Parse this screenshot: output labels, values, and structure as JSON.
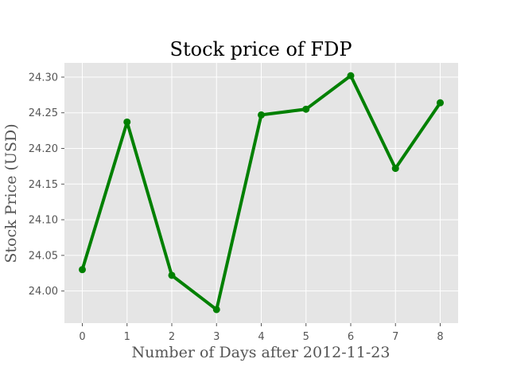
{
  "chart_data": {
    "type": "line",
    "title": "Stock price of FDP",
    "xlabel": "Number of Days after 2012-11-23",
    "ylabel": "Stock Price (USD)",
    "x": [
      0,
      1,
      2,
      3,
      4,
      5,
      6,
      7,
      8
    ],
    "y": [
      24.03,
      24.237,
      24.022,
      23.974,
      24.247,
      24.255,
      24.302,
      24.172,
      24.264
    ],
    "xlim": [
      -0.4,
      8.4
    ],
    "ylim": [
      23.955,
      24.32
    ],
    "xticks": [
      "0",
      "1",
      "2",
      "3",
      "4",
      "5",
      "6",
      "7",
      "8"
    ],
    "yticks": [
      "24.00",
      "24.05",
      "24.10",
      "24.15",
      "24.20",
      "24.25",
      "24.30"
    ],
    "grid": true,
    "colors": {
      "line": "#008000",
      "plot_background": "#e5e5e5",
      "grid": "#ffffff",
      "tick_text": "#555555"
    }
  }
}
